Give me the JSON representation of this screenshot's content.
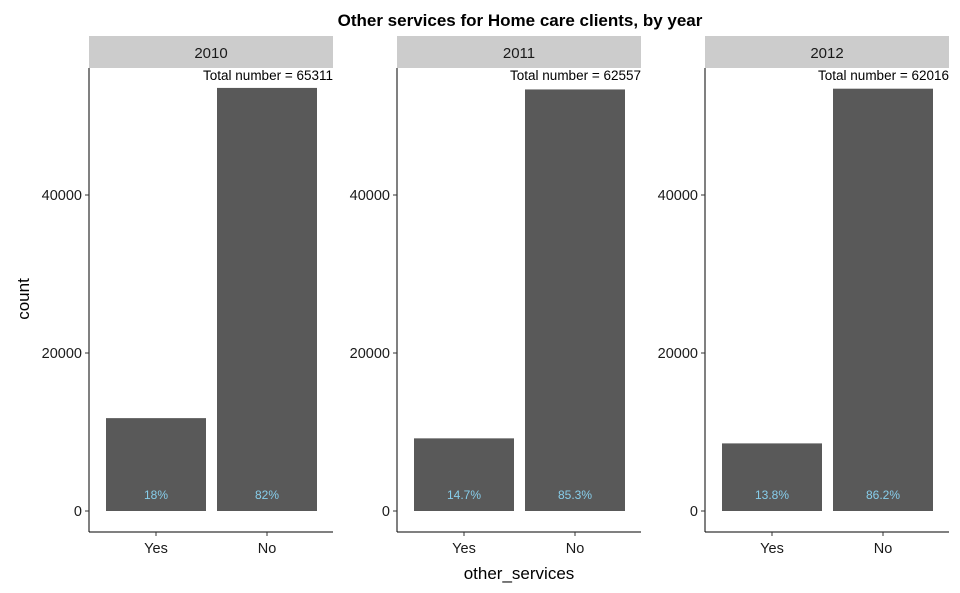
{
  "chart_data": {
    "type": "bar",
    "title": "Other services for Home care clients, by year",
    "xlabel": "other_services",
    "ylabel": "count",
    "categories": [
      "Yes",
      "No"
    ],
    "y_ticks": [
      0,
      20000,
      40000
    ],
    "y_tick_labels": [
      "0",
      "20000",
      "40000"
    ],
    "ylim": [
      0,
      56000
    ],
    "bar_color": "#595959",
    "pct_label_color": "#87CEEB",
    "strip_color": "#cccccc",
    "grid": false,
    "panels": [
      {
        "facet": "2010",
        "total_label": "Total number = 65311",
        "values": [
          11756,
          53555
        ],
        "pct_labels": [
          "18%",
          "82%"
        ]
      },
      {
        "facet": "2011",
        "total_label": "Total number = 62557",
        "values": [
          9196,
          53361
        ],
        "pct_labels": [
          "14.7%",
          "85.3%"
        ]
      },
      {
        "facet": "2012",
        "total_label": "Total number = 62016",
        "values": [
          8558,
          53458
        ],
        "pct_labels": [
          "13.8%",
          "86.2%"
        ]
      }
    ]
  }
}
